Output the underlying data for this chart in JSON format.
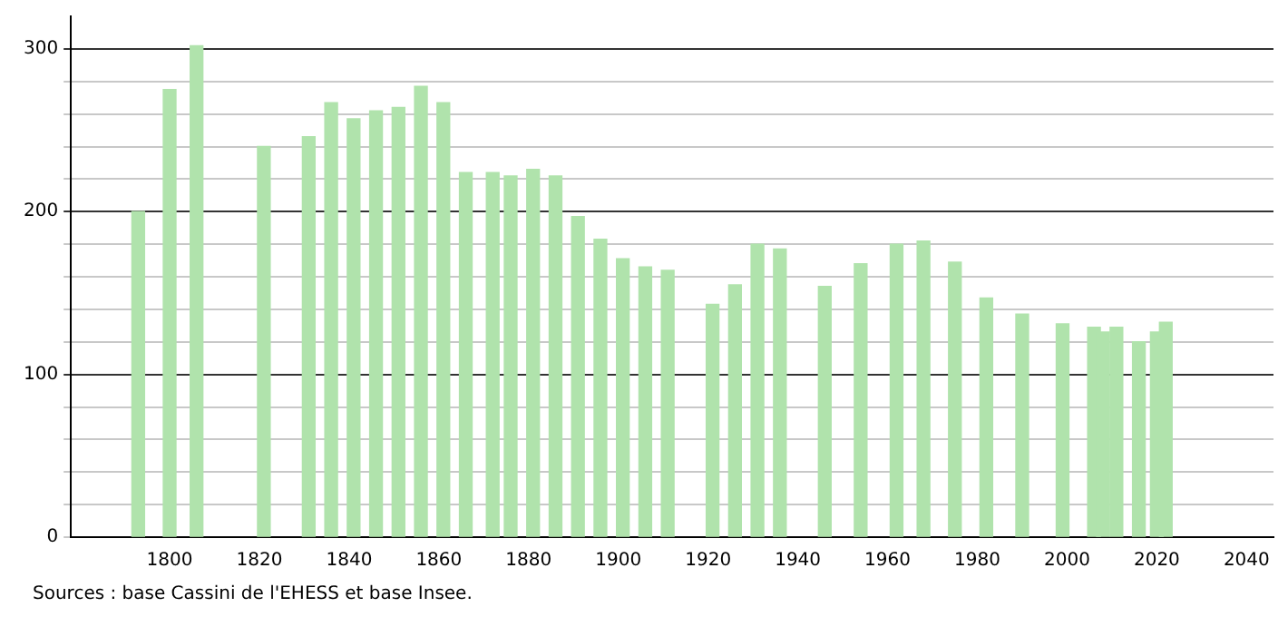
{
  "chart_data": {
    "type": "bar",
    "x": [
      1793,
      1800,
      1806,
      1821,
      1831,
      1836,
      1841,
      1846,
      1851,
      1856,
      1861,
      1866,
      1872,
      1876,
      1881,
      1886,
      1891,
      1896,
      1901,
      1906,
      1911,
      1921,
      1926,
      1931,
      1936,
      1946,
      1954,
      1962,
      1968,
      1975,
      1982,
      1990,
      1999,
      2006,
      2008,
      2011,
      2016,
      2020,
      2022
    ],
    "values": [
      200,
      275,
      302,
      240,
      246,
      267,
      257,
      262,
      264,
      277,
      267,
      224,
      224,
      222,
      226,
      222,
      197,
      183,
      171,
      166,
      164,
      143,
      155,
      180,
      177,
      154,
      168,
      180,
      182,
      169,
      147,
      137,
      131,
      129,
      126,
      129,
      120,
      126,
      132
    ],
    "color": "#b0e3ac",
    "xlim": [
      1778,
      2046
    ],
    "xticks": [
      1800,
      1820,
      1840,
      1860,
      1880,
      1900,
      1920,
      1940,
      1960,
      1980,
      2000,
      2020,
      2040
    ],
    "ylim": [
      0,
      320
    ],
    "yticks": [
      0,
      {
        "value": 20,
        "label": null
      },
      {
        "value": 40,
        "label": null
      },
      {
        "value": 60,
        "label": null
      },
      {
        "value": 80,
        "label": null
      },
      100,
      {
        "value": 120,
        "label": null
      },
      {
        "value": 140,
        "label": null
      },
      {
        "value": 160,
        "label": null
      },
      {
        "value": 180,
        "label": null
      },
      200,
      {
        "value": 220,
        "label": null
      },
      {
        "value": 240,
        "label": null
      },
      {
        "value": 260,
        "label": null
      },
      {
        "value": 280,
        "label": null
      },
      300
    ],
    "grid": "y",
    "annotations": [
      "Sources : base Cassini de l'EHESS et base Insee."
    ]
  }
}
